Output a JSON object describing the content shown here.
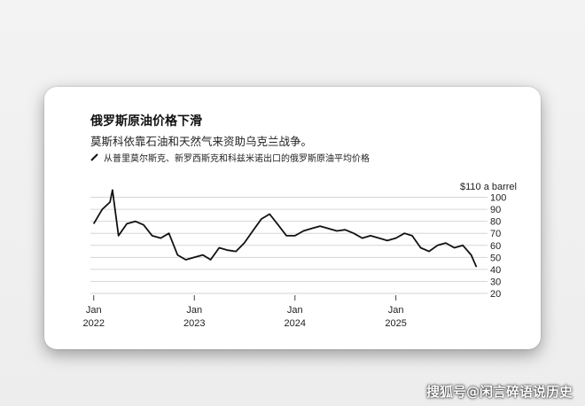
{
  "chart_data": {
    "type": "line",
    "title": "俄罗斯原油价格下滑",
    "subtitle": "莫斯科依靠石油和天然气来资助乌克兰战争。",
    "series": [
      {
        "name": "从普里莫尔斯克、新罗西斯克和科兹米诺出口的俄罗斯原油平均价格",
        "color": "#111111",
        "x": [
          "2022-01-01",
          "2022-02-01",
          "2022-03-01",
          "2022-03-10",
          "2022-04-01",
          "2022-05-01",
          "2022-06-01",
          "2022-07-01",
          "2022-08-01",
          "2022-09-01",
          "2022-10-01",
          "2022-11-01",
          "2022-12-01",
          "2023-01-01",
          "2023-02-01",
          "2023-03-01",
          "2023-04-01",
          "2023-05-01",
          "2023-06-01",
          "2023-07-01",
          "2023-08-01",
          "2023-09-01",
          "2023-10-01",
          "2023-11-01",
          "2023-12-01",
          "2024-01-01",
          "2024-02-01",
          "2024-03-01",
          "2024-04-01",
          "2024-05-01",
          "2024-06-01",
          "2024-07-01",
          "2024-08-01",
          "2024-09-01",
          "2024-10-01",
          "2024-11-01",
          "2024-12-01",
          "2025-01-01",
          "2025-02-01",
          "2025-03-01",
          "2025-04-01",
          "2025-05-01",
          "2025-06-01",
          "2025-07-01",
          "2025-08-01",
          "2025-09-01",
          "2025-10-01",
          "2025-10-20"
        ],
        "values": [
          78,
          90,
          96,
          106,
          68,
          78,
          80,
          77,
          68,
          66,
          70,
          52,
          48,
          50,
          52,
          48,
          58,
          56,
          55,
          62,
          72,
          82,
          86,
          77,
          68,
          68,
          72,
          74,
          76,
          74,
          72,
          73,
          70,
          66,
          68,
          66,
          64,
          66,
          70,
          68,
          58,
          55,
          60,
          62,
          58,
          60,
          52,
          42
        ]
      }
    ],
    "y_unit_label": "$110 a barrel",
    "yticks": [
      20,
      30,
      40,
      50,
      60,
      70,
      80,
      90,
      100
    ],
    "ylim": [
      20,
      110
    ],
    "xlim": [
      "2021-12-20",
      "2025-11-10"
    ],
    "xticks": [
      {
        "date": "2022-01-01",
        "month": "Jan",
        "year": "2022"
      },
      {
        "date": "2023-01-01",
        "month": "Jan",
        "year": "2023"
      },
      {
        "date": "2024-01-01",
        "month": "Jan",
        "year": "2024"
      },
      {
        "date": "2025-01-01",
        "month": "Jan",
        "year": "2025"
      }
    ],
    "grid": "horizontal"
  },
  "watermark": "搜狐号@闲言碎语说历史"
}
